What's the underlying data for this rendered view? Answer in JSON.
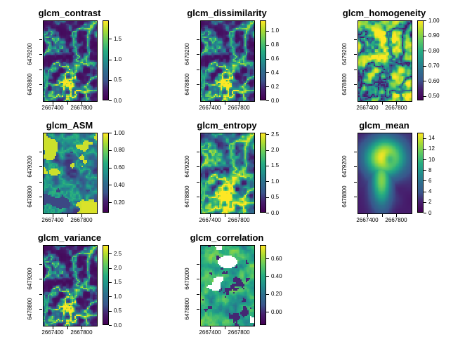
{
  "figure": {
    "background": "#ffffff",
    "palette_name": "viridis",
    "palette_hex": [
      "#440154",
      "#471f6e",
      "#39568c",
      "#2d708e",
      "#21918c",
      "#27ad81",
      "#5ec962",
      "#aadc32",
      "#fde725"
    ]
  },
  "shared_axes": {
    "x_tick_labels": [
      "2667400",
      "2667800"
    ],
    "y_tick_labels": [
      "6479200",
      "6478800"
    ]
  },
  "chart_data": [
    {
      "type": "heatmap",
      "title": "glcm_contrast",
      "x_tick_labels": [
        "2667400",
        "2667800"
      ],
      "y_tick_labels": [
        "6479200",
        "6478800"
      ],
      "legend": {
        "vmin": 0.0,
        "vmax": 1.95,
        "ticks": [
          {
            "value": 1.5,
            "label": "1.5"
          },
          {
            "value": 1.0,
            "label": "1.0"
          },
          {
            "value": 0.5,
            "label": "0.5"
          },
          {
            "value": 0.0,
            "label": "0.0"
          }
        ]
      },
      "style": {
        "pattern": "veins",
        "seed": 5,
        "pow": 5,
        "gain": 1.0
      }
    },
    {
      "type": "heatmap",
      "title": "glcm_dissimilarity",
      "x_tick_labels": [
        "2667400",
        "2667800"
      ],
      "y_tick_labels": [
        "6479200",
        "6478800"
      ],
      "legend": {
        "vmin": 0.0,
        "vmax": 1.15,
        "ticks": [
          {
            "value": 1.0,
            "label": "1.0"
          },
          {
            "value": 0.8,
            "label": "0.8"
          },
          {
            "value": 0.6,
            "label": "0.6"
          },
          {
            "value": 0.4,
            "label": "0.4"
          },
          {
            "value": 0.2,
            "label": "0.2"
          },
          {
            "value": 0.0,
            "label": "0.0"
          }
        ]
      },
      "style": {
        "pattern": "veins",
        "seed": 5,
        "pow": 4,
        "gain": 1.0
      }
    },
    {
      "type": "heatmap",
      "title": "glcm_homogeneity",
      "x_tick_labels": [
        "2667400",
        "2667800"
      ],
      "y_tick_labels": [
        "6479200",
        "6478800"
      ],
      "legend": {
        "vmin": 0.47,
        "vmax": 1.0,
        "ticks": [
          {
            "value": 1.0,
            "label": "1.00"
          },
          {
            "value": 0.9,
            "label": "0.90"
          },
          {
            "value": 0.8,
            "label": "0.80"
          },
          {
            "value": 0.7,
            "label": "0.70"
          },
          {
            "value": 0.6,
            "label": "0.60"
          },
          {
            "value": 0.5,
            "label": "0.50"
          }
        ]
      },
      "style": {
        "pattern": "veins-inv",
        "seed": 5,
        "pow": 3.2,
        "gain": 1.0
      }
    },
    {
      "type": "heatmap",
      "title": "glcm_ASM",
      "x_tick_labels": [
        "2667400",
        "2667800"
      ],
      "y_tick_labels": [
        "6479200",
        "6478800"
      ],
      "legend": {
        "vmin": 0.08,
        "vmax": 1.0,
        "ticks": [
          {
            "value": 1.0,
            "label": "1.00"
          },
          {
            "value": 0.8,
            "label": "0.80"
          },
          {
            "value": 0.6,
            "label": "0.60"
          },
          {
            "value": 0.4,
            "label": "0.40"
          },
          {
            "value": 0.2,
            "label": "0.20"
          }
        ]
      },
      "style": {
        "pattern": "patches",
        "seed": 9,
        "pow": 2.5,
        "gain": 1.0
      }
    },
    {
      "type": "heatmap",
      "title": "glcm_entropy",
      "x_tick_labels": [
        "2667400",
        "2667800"
      ],
      "y_tick_labels": [
        "6479200",
        "6478800"
      ],
      "legend": {
        "vmin": 0.0,
        "vmax": 2.55,
        "ticks": [
          {
            "value": 2.5,
            "label": "2.5"
          },
          {
            "value": 2.0,
            "label": "2.0"
          },
          {
            "value": 1.5,
            "label": "1.5"
          },
          {
            "value": 1.0,
            "label": "1.0"
          },
          {
            "value": 0.5,
            "label": "0.5"
          },
          {
            "value": 0.0,
            "label": "0.0"
          }
        ]
      },
      "style": {
        "pattern": "veins",
        "seed": 5,
        "pow": 2.2,
        "gain": 1.1
      }
    },
    {
      "type": "heatmap",
      "title": "glcm_mean",
      "x_tick_labels": [
        "2667400",
        "2667800"
      ],
      "y_tick_labels": [
        "6479200",
        "6478800"
      ],
      "legend": {
        "vmin": 0,
        "vmax": 15,
        "ticks": [
          {
            "value": 14,
            "label": "14"
          },
          {
            "value": 12,
            "label": "12"
          },
          {
            "value": 10,
            "label": "10"
          },
          {
            "value": 8,
            "label": "8"
          },
          {
            "value": 6,
            "label": "6"
          },
          {
            "value": 4,
            "label": "4"
          },
          {
            "value": 2,
            "label": "2"
          },
          {
            "value": 0,
            "label": "0"
          }
        ]
      },
      "style": {
        "pattern": "blob",
        "seed": 3,
        "pow": 1,
        "gain": 1.0
      }
    },
    {
      "type": "heatmap",
      "title": "glcm_variance",
      "x_tick_labels": [
        "2667400",
        "2667800"
      ],
      "y_tick_labels": [
        "6479200",
        "6478800"
      ],
      "legend": {
        "vmin": 0.0,
        "vmax": 2.8,
        "ticks": [
          {
            "value": 2.5,
            "label": "2.5"
          },
          {
            "value": 2.0,
            "label": "2.0"
          },
          {
            "value": 1.5,
            "label": "1.5"
          },
          {
            "value": 1.0,
            "label": "1.0"
          },
          {
            "value": 0.5,
            "label": "0.5"
          },
          {
            "value": 0.0,
            "label": "0.0"
          }
        ]
      },
      "style": {
        "pattern": "veins",
        "seed": 5,
        "pow": 5,
        "gain": 1.0
      }
    },
    {
      "type": "heatmap",
      "title": "glcm_correlation",
      "x_tick_labels": [
        "2667400",
        "2667800"
      ],
      "y_tick_labels": [
        "6479200",
        "6478800"
      ],
      "legend": {
        "vmin": -0.15,
        "vmax": 0.75,
        "ticks": [
          {
            "value": 0.6,
            "label": "0.60"
          },
          {
            "value": 0.4,
            "label": "0.40"
          },
          {
            "value": 0.2,
            "label": "0.20"
          },
          {
            "value": 0.0,
            "label": "0.00"
          }
        ]
      },
      "style": {
        "pattern": "patchy-na",
        "seed": 11,
        "pow": 2,
        "gain": 1.0
      }
    }
  ]
}
